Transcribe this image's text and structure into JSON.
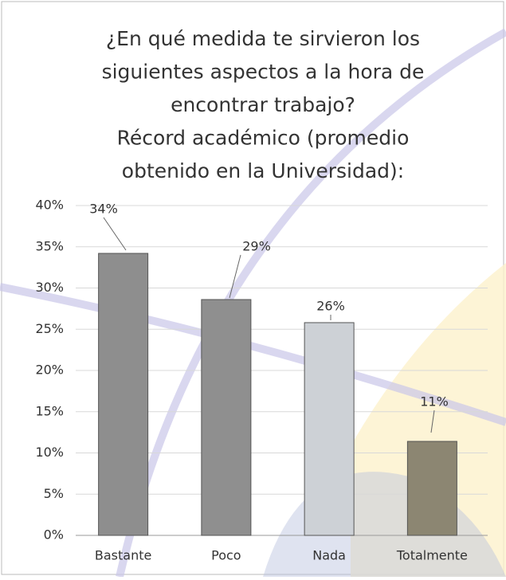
{
  "chart_data": {
    "type": "bar",
    "title": [
      "¿En qué medida te sirvieron los",
      "siguientes aspectos a la hora de",
      "encontrar trabajo?",
      "Récord académico (promedio",
      "obtenido en la Universidad):"
    ],
    "categories": [
      "Bastante",
      "Poco",
      "Nada",
      "Totalmente"
    ],
    "values": [
      34.2,
      28.6,
      25.8,
      11.4
    ],
    "value_labels": [
      "34%",
      "29%",
      "26%",
      "11%"
    ],
    "colors": [
      "#8e8e8e",
      "#8f8f8f",
      "#cdd1d6",
      "#8c8672"
    ],
    "ylim": [
      0,
      40
    ],
    "yticks": [
      {
        "value": 0,
        "label": "0%"
      },
      {
        "value": 5,
        "label": "5%"
      },
      {
        "value": 10,
        "label": "10%"
      },
      {
        "value": 15,
        "label": "15%"
      },
      {
        "value": 20,
        "label": "20%"
      },
      {
        "value": 25,
        "label": "25%"
      },
      {
        "value": 30,
        "label": "30%"
      },
      {
        "value": 35,
        "label": "35%"
      },
      {
        "value": 40,
        "label": "40%"
      }
    ],
    "grid": true
  }
}
